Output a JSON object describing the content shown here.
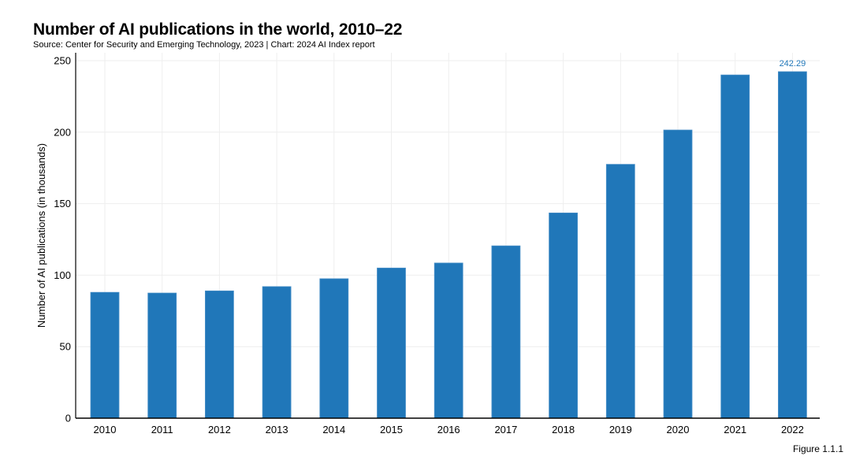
{
  "header": {
    "title": "Number of AI publications in the world, 2010–22",
    "subtitle": "Source: Center for Security and Emerging Technology, 2023 | Chart: 2024 AI Index report"
  },
  "footer": {
    "figure_label": "Figure 1.1.1"
  },
  "colors": {
    "bar": "#2077b9",
    "data_label": "#2077b9",
    "grid": "#eeeeee",
    "axis": "#000000"
  },
  "chart_data": {
    "type": "bar",
    "title": "Number of AI publications in the world, 2010–22",
    "xlabel": "",
    "ylabel": "Number of AI publications (in thousands)",
    "categories": [
      "2010",
      "2011",
      "2012",
      "2013",
      "2014",
      "2015",
      "2016",
      "2017",
      "2018",
      "2019",
      "2020",
      "2021",
      "2022"
    ],
    "values": [
      88,
      87.5,
      89,
      92,
      97.5,
      105,
      108.5,
      120.5,
      143.5,
      177.5,
      201.5,
      240,
      242.29
    ],
    "ylim": [
      0,
      250
    ],
    "yticks": [
      0,
      50,
      100,
      150,
      200,
      250
    ],
    "data_labels": [
      {
        "category": "2022",
        "text": "242.29"
      }
    ],
    "grid": true,
    "legend": "none"
  }
}
